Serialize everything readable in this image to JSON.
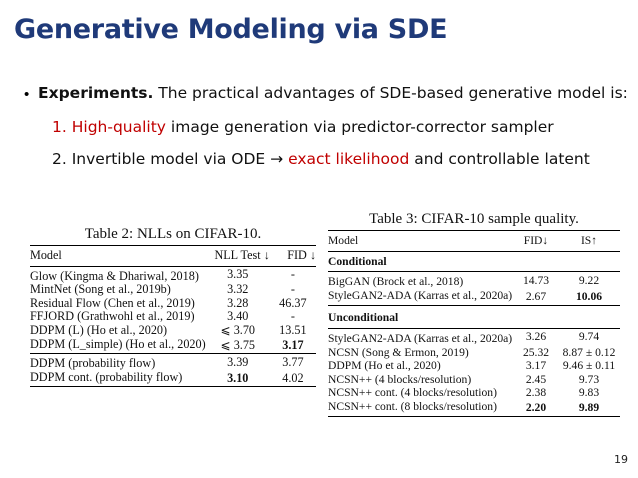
{
  "title": "Generative Modeling via SDE",
  "bullet": {
    "head": "Experiments.",
    "text": " The practical advantages of SDE-based generative model is:",
    "items": [
      {
        "num": "1.",
        "highlight": "High-quality",
        "rest": " image generation via predictor-corrector sampler"
      },
      {
        "num": "2.",
        "pre": "Invertible model via ODE → ",
        "highlight": "exact likelihood",
        "rest": " and controllable latent"
      }
    ]
  },
  "table2": {
    "caption": "Table 2: NLLs on CIFAR-10.",
    "headers": [
      "Model",
      "NLL Test ↓",
      "FID ↓"
    ],
    "group1": [
      [
        "Glow (Kingma & Dhariwal, 2018)",
        "3.35",
        "-"
      ],
      [
        "MintNet (Song et al., 2019b)",
        "3.32",
        "-"
      ],
      [
        "Residual Flow (Chen et al., 2019)",
        "3.28",
        "46.37"
      ],
      [
        "FFJORD (Grathwohl et al., 2019)",
        "3.40",
        "-"
      ],
      [
        "DDPM (L) (Ho et al., 2020)",
        "⩽ 3.70",
        "13.51"
      ],
      [
        "DDPM (L_simple) (Ho et al., 2020)",
        "⩽ 3.75",
        "3.17"
      ]
    ],
    "group2": [
      [
        "DDPM (probability flow)",
        "3.39",
        "3.77"
      ],
      [
        "DDPM cont. (probability flow)",
        "3.10",
        "4.02"
      ]
    ]
  },
  "table3": {
    "caption": "Table 3: CIFAR-10 sample quality.",
    "headers": [
      "Model",
      "FID↓",
      "IS↑"
    ],
    "section1": "Conditional",
    "group1": [
      [
        "BigGAN (Brock et al., 2018)",
        "14.73",
        "9.22"
      ],
      [
        "StyleGAN2-ADA (Karras et al., 2020a)",
        "2.67",
        "10.06"
      ]
    ],
    "section2": "Unconditional",
    "group2": [
      [
        "StyleGAN2-ADA (Karras et al., 2020a)",
        "3.26",
        "9.74"
      ],
      [
        "NCSN (Song & Ermon, 2019)",
        "25.32",
        "8.87 ± 0.12"
      ],
      [
        "DDPM (Ho et al., 2020)",
        "3.17",
        "9.46 ± 0.11"
      ],
      [
        "NCSN++ (4 blocks/resolution)",
        "2.45",
        "9.73"
      ],
      [
        "NCSN++ cont. (4 blocks/resolution)",
        "2.38",
        "9.83"
      ],
      [
        "NCSN++ cont. (8 blocks/resolution)",
        "2.20",
        "9.89"
      ]
    ]
  },
  "page_number": "19"
}
